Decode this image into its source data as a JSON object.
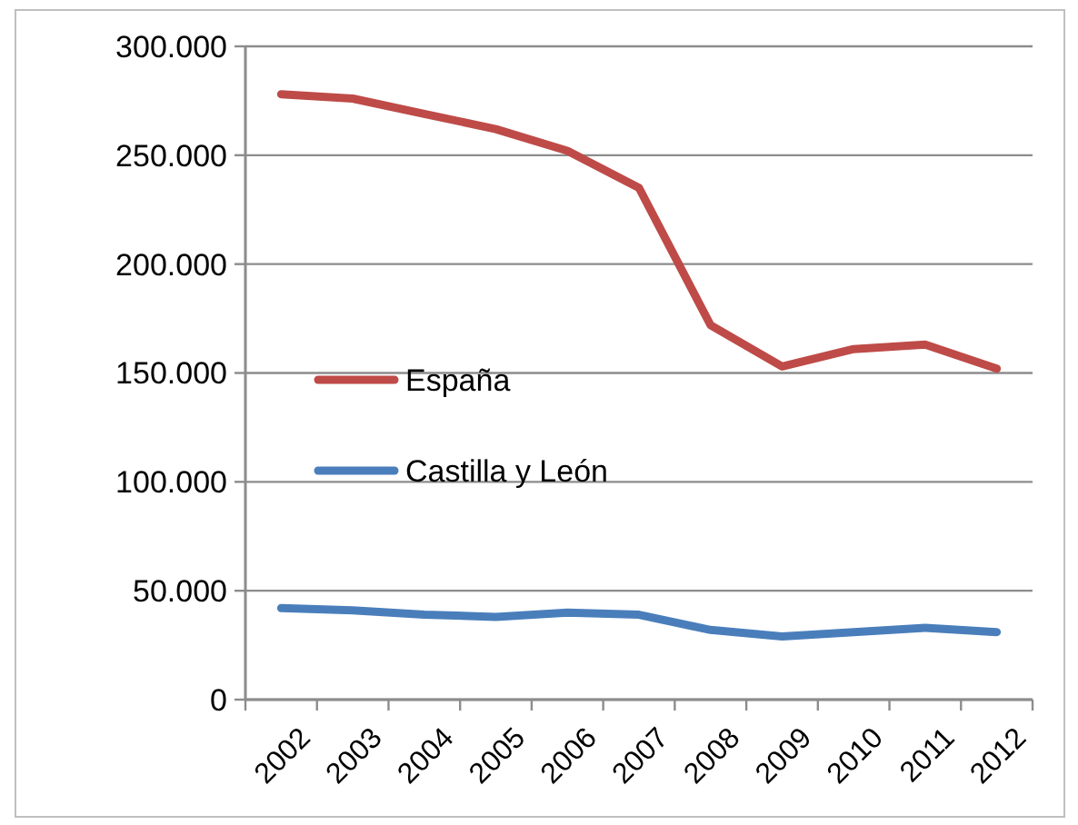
{
  "chart_data": {
    "type": "line",
    "categories": [
      "2002",
      "2003",
      "2004",
      "2005",
      "2006",
      "2007",
      "2008",
      "2009",
      "2010",
      "2011",
      "2012"
    ],
    "series": [
      {
        "name": "España",
        "color": "#be4b48",
        "values": [
          278000,
          276000,
          269000,
          262000,
          252000,
          235000,
          172000,
          153000,
          161000,
          163000,
          152000
        ]
      },
      {
        "name": "Castilla y León",
        "color": "#4a7ebb",
        "values": [
          42000,
          41000,
          39000,
          38000,
          40000,
          39000,
          32000,
          29000,
          31000,
          33000,
          31000
        ]
      }
    ],
    "ylim": [
      0,
      300000
    ],
    "yticks": [
      {
        "value": 0,
        "label": "0"
      },
      {
        "value": 50000,
        "label": "50.000"
      },
      {
        "value": 100000,
        "label": "100.000"
      },
      {
        "value": 150000,
        "label": "150.000"
      },
      {
        "value": 200000,
        "label": "200.000"
      },
      {
        "value": 250000,
        "label": "250.000"
      },
      {
        "value": 300000,
        "label": "300.000"
      }
    ],
    "grid": "y",
    "legend": "left",
    "line_style": "solid",
    "marker": "none"
  }
}
